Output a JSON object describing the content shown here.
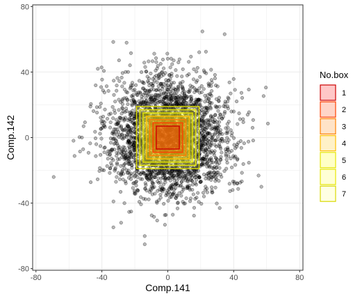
{
  "chart_data": {
    "type": "scatter",
    "title": "",
    "xlabel": "Comp.141",
    "ylabel": "Comp.142",
    "xlim": [
      -82,
      82
    ],
    "ylim": [
      -81,
      81
    ],
    "x_ticks": [
      -80,
      -40,
      0,
      40,
      80
    ],
    "y_ticks": [
      -80,
      -40,
      0,
      40,
      80
    ],
    "x_tick_labels": [
      "-80",
      "-40",
      "0",
      "40",
      "80"
    ],
    "y_tick_labels": [
      "-80",
      "-40",
      "0",
      "40",
      "80"
    ],
    "grid": true,
    "theme": "white panel with light grey gridlines and black border",
    "points": {
      "description": "several thousand semi-transparent grey points, dense near the origin",
      "count": 3000,
      "spread_sd": 18,
      "x_range": [
        -76,
        73
      ],
      "y_range": [
        -73,
        74
      ],
      "color": "#000000",
      "opacity": 0.28
    },
    "boxes": {
      "legend_title": "No.box",
      "entries": [
        {
          "label": "1",
          "x": [
            -7,
            7
          ],
          "y": [
            -7,
            7
          ],
          "fill": "#ff0000",
          "stroke": "#cc0000"
        },
        {
          "label": "2",
          "x": [
            -9,
            9
          ],
          "y": [
            -9,
            9
          ],
          "fill": "#ff4000",
          "stroke": "#ff4000"
        },
        {
          "label": "3",
          "x": [
            -11,
            11
          ],
          "y": [
            -11,
            11
          ],
          "fill": "#ff8000",
          "stroke": "#ff8000"
        },
        {
          "label": "4",
          "x": [
            -13,
            13
          ],
          "y": [
            -13,
            13
          ],
          "fill": "#ffbf00",
          "stroke": "#ffbf00"
        },
        {
          "label": "5",
          "x": [
            -15,
            15
          ],
          "y": [
            -15,
            15
          ],
          "fill": "#ffff00",
          "stroke": "#e6e600"
        },
        {
          "label": "6",
          "x": [
            -17,
            17
          ],
          "y": [
            -17,
            17
          ],
          "fill": "#ffff40",
          "stroke": "#e6e600"
        },
        {
          "label": "7",
          "x": [
            -19,
            19
          ],
          "y": [
            -19,
            19
          ],
          "fill": "#ffff80",
          "stroke": "#d9d900"
        }
      ],
      "legend_placement": "right"
    },
    "colors": {
      "panel_border": "#000000",
      "grid": "#ebebeb",
      "tick_text": "#4d4d4d"
    }
  }
}
